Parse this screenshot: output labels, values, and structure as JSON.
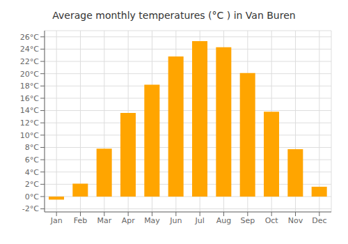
{
  "chart_data": {
    "type": "bar",
    "title": "Average monthly temperatures (°C ) in Van Buren",
    "categories": [
      "Jan",
      "Feb",
      "Mar",
      "Apr",
      "May",
      "Jun",
      "Jul",
      "Aug",
      "Sep",
      "Oct",
      "Nov",
      "Dec"
    ],
    "values": [
      -0.5,
      2.1,
      7.8,
      13.6,
      18.2,
      22.8,
      25.3,
      24.3,
      20.1,
      13.8,
      7.7,
      1.6
    ],
    "color": "#FFA500",
    "ylim": [
      -2.5,
      27
    ],
    "yticks": [
      {
        "value": -2,
        "label": "-2°C"
      },
      {
        "value": 0,
        "label": "0°C"
      },
      {
        "value": 2,
        "label": "2°C"
      },
      {
        "value": 4,
        "label": "4°C"
      },
      {
        "value": 6,
        "label": "6°C"
      },
      {
        "value": 8,
        "label": "8°C"
      },
      {
        "value": 10,
        "label": "10°C"
      },
      {
        "value": 12,
        "label": "12°C"
      },
      {
        "value": 14,
        "label": "14°C"
      },
      {
        "value": 16,
        "label": "16°C"
      },
      {
        "value": 18,
        "label": "18°C"
      },
      {
        "value": 20,
        "label": "20°C"
      },
      {
        "value": 22,
        "label": "22°C"
      },
      {
        "value": 24,
        "label": "24°C"
      },
      {
        "value": 26,
        "label": "26°C"
      }
    ],
    "grid": true
  }
}
